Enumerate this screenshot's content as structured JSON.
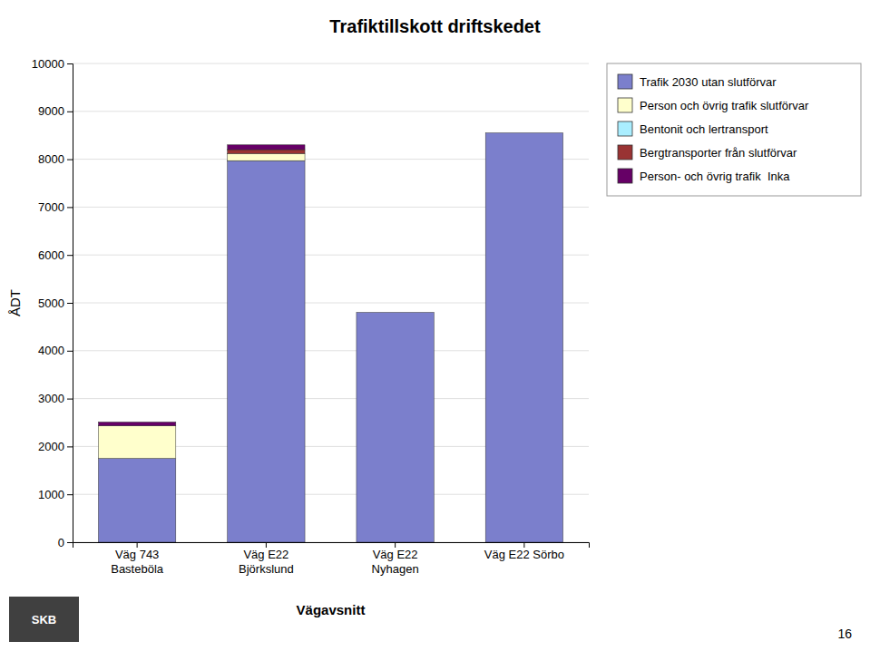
{
  "chart_data": {
    "type": "bar",
    "stacked": true,
    "title": "Trafiktillskott driftskedet",
    "x_label": "Vägavsnitt",
    "y_label": "ÅDT",
    "categories": [
      "Väg 743\nBasteböla",
      "Väg E22\nBjörkslund",
      "Väg E22\nNyhagen",
      "Väg E22 Sörbo"
    ],
    "series": [
      {
        "name": "Trafik 2030 utan slutförvar",
        "color": "#7B7FCC",
        "values": [
          1750,
          7970,
          4800,
          8550
        ]
      },
      {
        "name": "Person och övrig trafik slutförvar",
        "color": "#FFFFCC",
        "values": [
          680,
          150,
          0,
          0
        ]
      },
      {
        "name": "Bentonit och lertransport",
        "color": "#AAEEFF",
        "values": [
          0,
          0,
          0,
          0
        ]
      },
      {
        "name": "Bergtransporter från slutförvar",
        "color": "#993333",
        "values": [
          0,
          80,
          0,
          0
        ]
      },
      {
        "name": "Person- och övrig trafik  Inka",
        "color": "#660066",
        "values": [
          80,
          100,
          0,
          0
        ]
      }
    ],
    "ylim": [
      0,
      10000
    ],
    "yticks": [
      0,
      1000,
      2000,
      3000,
      4000,
      5000,
      6000,
      7000,
      8000,
      9000,
      10000
    ],
    "grid": true,
    "legend": "right",
    "annotations": [
      "SKB",
      "16"
    ]
  }
}
